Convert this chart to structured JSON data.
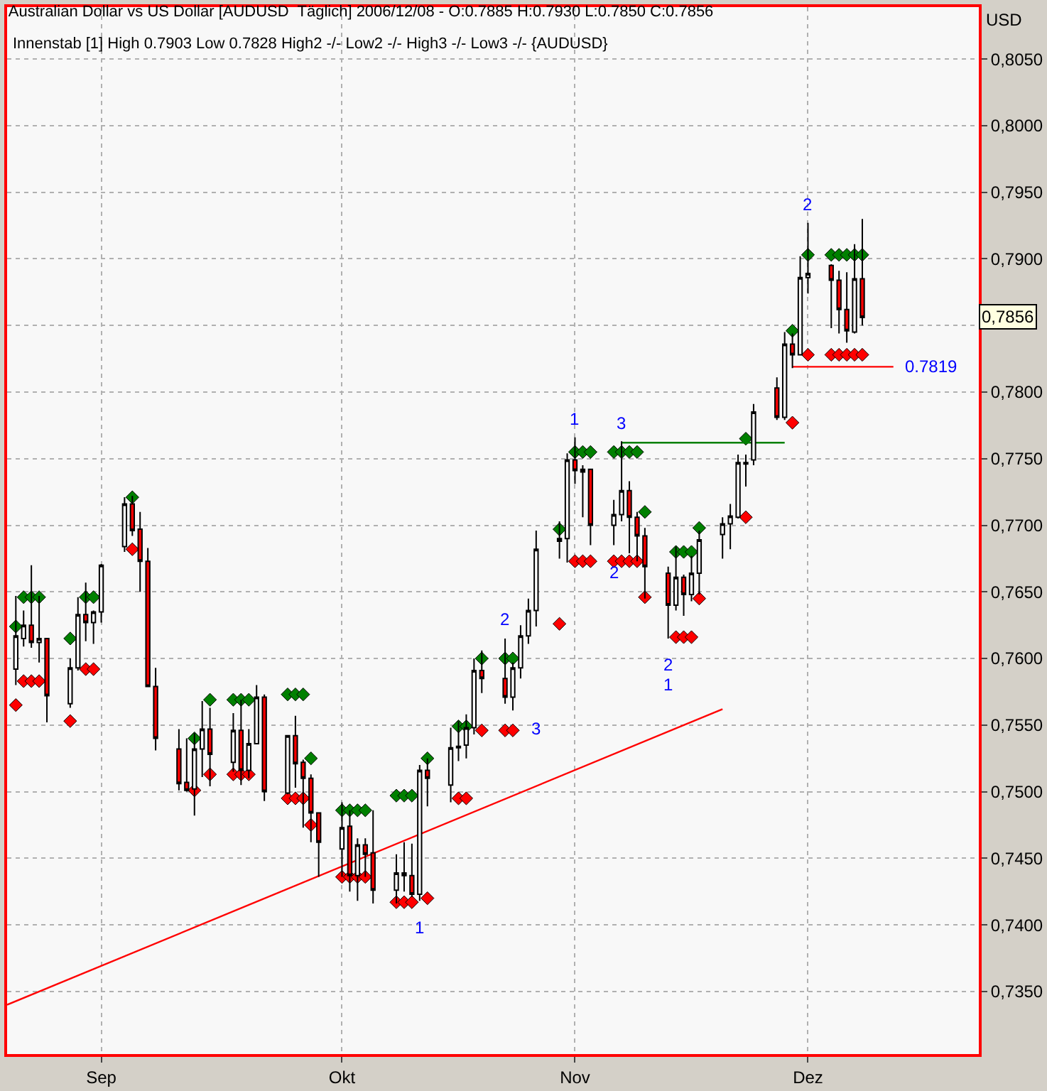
{
  "chart_data": {
    "type": "candlestick",
    "title": "Australian Dollar vs US Dollar [AUDUSD  Täglich] 2006/12/08 - O:0.7885 H:0.7930 L:0.7850 C:0.7856",
    "subtitle": "Innenstab [1] High 0.7903 Low 0.7828 High2 -/- Low2 -/- High3 -/- Low3 -/- {AUDUSD}",
    "ylabel": "USD",
    "x": [
      "2006-08-21",
      "2006-08-22",
      "2006-08-23",
      "2006-08-24",
      "2006-08-25",
      "2006-08-28",
      "2006-08-29",
      "2006-08-30",
      "2006-08-31",
      "2006-09-01",
      "2006-09-04",
      "2006-09-05",
      "2006-09-06",
      "2006-09-07",
      "2006-09-08",
      "2006-09-11",
      "2006-09-12",
      "2006-09-13",
      "2006-09-14",
      "2006-09-15",
      "2006-09-18",
      "2006-09-19",
      "2006-09-20",
      "2006-09-21",
      "2006-09-22",
      "2006-09-25",
      "2006-09-26",
      "2006-09-27",
      "2006-09-28",
      "2006-09-29",
      "2006-10-02",
      "2006-10-03",
      "2006-10-04",
      "2006-10-05",
      "2006-10-06",
      "2006-10-09",
      "2006-10-10",
      "2006-10-11",
      "2006-10-12",
      "2006-10-13",
      "2006-10-16",
      "2006-10-17",
      "2006-10-18",
      "2006-10-19",
      "2006-10-20",
      "2006-10-23",
      "2006-10-24",
      "2006-10-25",
      "2006-10-26",
      "2006-10-27",
      "2006-10-30",
      "2006-10-31",
      "2006-11-01",
      "2006-11-02",
      "2006-11-03",
      "2006-11-06",
      "2006-11-07",
      "2006-11-08",
      "2006-11-09",
      "2006-11-10",
      "2006-11-13",
      "2006-11-14",
      "2006-11-15",
      "2006-11-16",
      "2006-11-17",
      "2006-11-20",
      "2006-11-21",
      "2006-11-22",
      "2006-11-23",
      "2006-11-24",
      "2006-11-27",
      "2006-11-28",
      "2006-11-29",
      "2006-11-30",
      "2006-12-01",
      "2006-12-04",
      "2006-12-05",
      "2006-12-06",
      "2006-12-07",
      "2006-12-08"
    ],
    "ohlc": [
      [
        0.7592,
        0.7647,
        0.758,
        0.7617
      ],
      [
        0.7615,
        0.7636,
        0.7609,
        0.7625
      ],
      [
        0.7625,
        0.767,
        0.7608,
        0.7612
      ],
      [
        0.7612,
        0.7647,
        0.7597,
        0.7615
      ],
      [
        0.7615,
        0.7615,
        0.7552,
        0.7572
      ],
      [
        0.7566,
        0.76,
        0.7563,
        0.7593
      ],
      [
        0.7593,
        0.7646,
        0.7591,
        0.7633
      ],
      [
        0.7633,
        0.7657,
        0.7613,
        0.7627
      ],
      [
        0.7627,
        0.7636,
        0.7611,
        0.7635
      ],
      [
        0.7635,
        0.7671,
        0.7627,
        0.767
      ],
      [
        0.7684,
        0.7721,
        0.768,
        0.7716
      ],
      [
        0.7716,
        0.7722,
        0.7692,
        0.7696
      ],
      [
        0.7697,
        0.771,
        0.765,
        0.7673
      ],
      [
        0.7673,
        0.7683,
        0.7579,
        0.7579
      ],
      [
        0.7579,
        0.7593,
        0.7531,
        0.754
      ],
      [
        0.7532,
        0.7547,
        0.7501,
        0.7506
      ],
      [
        0.7507,
        0.754,
        0.75,
        0.7501
      ],
      [
        0.7502,
        0.7544,
        0.7482,
        0.7532
      ],
      [
        0.7532,
        0.7568,
        0.7511,
        0.7547
      ],
      [
        0.7547,
        0.7563,
        0.7504,
        0.7528
      ],
      [
        0.7522,
        0.7559,
        0.7515,
        0.7546
      ],
      [
        0.7546,
        0.7569,
        0.7505,
        0.7516
      ],
      [
        0.7516,
        0.7547,
        0.751,
        0.7536
      ],
      [
        0.7536,
        0.758,
        0.7536,
        0.7571
      ],
      [
        0.7571,
        0.7573,
        0.7493,
        0.75
      ],
      [
        0.7499,
        0.7542,
        0.7498,
        0.7542
      ],
      [
        0.7542,
        0.7557,
        0.7503,
        0.7521
      ],
      [
        0.7522,
        0.7524,
        0.7473,
        0.751
      ],
      [
        0.751,
        0.7513,
        0.7462,
        0.7484
      ],
      [
        0.7484,
        0.7484,
        0.7436,
        0.7462
      ],
      [
        0.7457,
        0.7492,
        0.7436,
        0.7473
      ],
      [
        0.7474,
        0.7486,
        0.7425,
        0.7437
      ],
      [
        0.7437,
        0.7465,
        0.7418,
        0.746
      ],
      [
        0.746,
        0.7465,
        0.7436,
        0.7453
      ],
      [
        0.7454,
        0.7486,
        0.7416,
        0.7426
      ],
      [
        0.7426,
        0.7453,
        0.7416,
        0.7439
      ],
      [
        0.7439,
        0.7462,
        0.7425,
        0.7437
      ],
      [
        0.7437,
        0.7461,
        0.7421,
        0.7423
      ],
      [
        0.7423,
        0.752,
        0.7418,
        0.7516
      ],
      [
        0.7516,
        0.7525,
        0.7489,
        0.751
      ],
      [
        0.7505,
        0.7548,
        0.7492,
        0.7533
      ],
      [
        0.7533,
        0.7553,
        0.7523,
        0.7534
      ],
      [
        0.7535,
        0.7558,
        0.7525,
        0.7548
      ],
      [
        0.7548,
        0.76,
        0.7543,
        0.7591
      ],
      [
        0.7591,
        0.7606,
        0.7574,
        0.7585
      ],
      [
        0.7585,
        0.7615,
        0.7566,
        0.7571
      ],
      [
        0.7571,
        0.7597,
        0.7561,
        0.7593
      ],
      [
        0.7593,
        0.7625,
        0.7585,
        0.7617
      ],
      [
        0.7617,
        0.7645,
        0.7611,
        0.7636
      ],
      [
        0.7636,
        0.7696,
        0.7624,
        0.7682
      ],
      [
        0.7688,
        0.7703,
        0.7675,
        0.769
      ],
      [
        0.769,
        0.7754,
        0.7672,
        0.7749
      ],
      [
        0.7749,
        0.7766,
        0.7731,
        0.7741
      ],
      [
        0.774,
        0.7745,
        0.7706,
        0.7742
      ],
      [
        0.7742,
        0.7742,
        0.7685,
        0.77
      ],
      [
        0.77,
        0.7719,
        0.7685,
        0.7708
      ],
      [
        0.7708,
        0.7763,
        0.7703,
        0.7726
      ],
      [
        0.7726,
        0.7733,
        0.7679,
        0.7706
      ],
      [
        0.7706,
        0.771,
        0.7673,
        0.7692
      ],
      [
        0.7692,
        0.7698,
        0.7645,
        0.7669
      ],
      [
        0.7664,
        0.7669,
        0.7615,
        0.764
      ],
      [
        0.764,
        0.7684,
        0.7636,
        0.7661
      ],
      [
        0.7661,
        0.7663,
        0.7632,
        0.7648
      ],
      [
        0.7648,
        0.7677,
        0.7643,
        0.7664
      ],
      [
        0.7664,
        0.7696,
        0.7648,
        0.7689
      ],
      [
        0.7693,
        0.7706,
        0.7675,
        0.7701
      ],
      [
        0.7701,
        0.7716,
        0.7682,
        0.7707
      ],
      [
        0.7706,
        0.7753,
        0.7705,
        0.7747
      ],
      [
        0.7746,
        0.7753,
        0.7729,
        0.7747
      ],
      [
        0.7749,
        0.7791,
        0.7745,
        0.7785
      ],
      [
        0.7803,
        0.7811,
        0.7779,
        0.7781
      ],
      [
        0.7781,
        0.7845,
        0.7779,
        0.7836
      ],
      [
        0.7836,
        0.7844,
        0.7818,
        0.7828
      ],
      [
        0.7828,
        0.7902,
        0.7828,
        0.7886
      ],
      [
        0.7886,
        0.7927,
        0.7874,
        0.7889
      ],
      [
        0.7895,
        0.7896,
        0.7848,
        0.7884
      ],
      [
        0.7884,
        0.7891,
        0.7844,
        0.7862
      ],
      [
        0.7862,
        0.789,
        0.7837,
        0.7846
      ],
      [
        0.7845,
        0.7911,
        0.7844,
        0.7885
      ],
      [
        0.7885,
        0.793,
        0.785,
        0.7856
      ]
    ],
    "series": [
      {
        "type": "scatter",
        "color": "#008000",
        "marker": "diamond",
        "values": [
          0.7624,
          0.7646,
          0.7646,
          0.7646,
          null,
          0.7615,
          null,
          0.7646,
          0.7646,
          null,
          null,
          0.7721,
          null,
          null,
          null,
          null,
          null,
          0.754,
          null,
          0.7569,
          0.7569,
          0.7569,
          0.7569,
          null,
          null,
          0.7573,
          0.7573,
          0.7573,
          0.7525,
          null,
          0.7486,
          0.7486,
          0.7486,
          0.7486,
          null,
          0.7497,
          0.7497,
          0.7497,
          null,
          0.7525,
          null,
          0.7549,
          0.7549,
          null,
          0.76,
          0.76,
          0.76,
          null,
          null,
          null,
          0.7697,
          null,
          0.7755,
          0.7755,
          0.7755,
          0.7755,
          0.7755,
          0.7755,
          0.7755,
          0.771,
          null,
          0.768,
          0.768,
          0.768,
          0.7698,
          null,
          null,
          null,
          0.7765,
          null,
          null,
          null,
          0.7846,
          null,
          0.7903,
          0.7903,
          0.7903,
          0.7903,
          0.7903,
          0.7903
        ]
      },
      {
        "type": "scatter",
        "color": "#ff0000",
        "marker": "diamond",
        "values": [
          0.7565,
          0.7583,
          0.7583,
          0.7583,
          null,
          0.7553,
          null,
          0.7592,
          0.7592,
          null,
          null,
          0.7682,
          null,
          null,
          null,
          null,
          null,
          0.7501,
          null,
          0.7513,
          0.7513,
          0.7513,
          0.7513,
          null,
          null,
          0.7495,
          0.7495,
          0.7495,
          0.7475,
          null,
          0.7436,
          0.7436,
          0.7436,
          0.7436,
          null,
          0.7417,
          0.7417,
          0.7417,
          null,
          0.742,
          null,
          0.7495,
          0.7495,
          null,
          0.7546,
          0.7546,
          0.7546,
          null,
          null,
          null,
          0.7626,
          null,
          0.7673,
          0.7673,
          0.7673,
          0.7673,
          0.7673,
          0.7673,
          0.7673,
          0.7646,
          null,
          0.7616,
          0.7616,
          0.7616,
          0.7645,
          null,
          null,
          null,
          0.7706,
          null,
          null,
          null,
          0.7777,
          null,
          0.7828,
          0.7828,
          0.7828,
          0.7828,
          0.7828,
          0.7828
        ]
      },
      {
        "type": "line",
        "color": "#ff0000",
        "x": [
          "2006-08-19T21:00",
          "2006-11-20"
        ],
        "values": [
          0.734,
          0.7562
        ]
      },
      {
        "type": "line",
        "color": "#008000",
        "x": [
          "2006-11-07",
          "2006-11-28"
        ],
        "values": [
          0.7762,
          0.7762
        ]
      },
      {
        "type": "line",
        "color": "#ff0000",
        "x": [
          "2006-11-29",
          "2006-12-12"
        ],
        "values": [
          0.7819,
          0.7819
        ]
      }
    ],
    "annotations": [
      {
        "text": "1",
        "x": "2006-10-12",
        "y": 0.7418
      },
      {
        "text": "2",
        "x": "2006-10-23",
        "y": 0.7615
      },
      {
        "text": "3",
        "x": "2006-10-25",
        "y": 0.7547
      },
      {
        "text": "1",
        "x": "2006-11-01",
        "y": 0.7766
      },
      {
        "text": "3",
        "x": "2006-11-07",
        "y": 0.7763
      },
      {
        "text": "2",
        "x": "2006-11-06",
        "y": 0.7685
      },
      {
        "text": "2",
        "x": "2006-11-13",
        "y": 0.7615
      },
      {
        "text": "1",
        "x": "2006-11-13",
        "y": 0.7615
      },
      {
        "text": "2",
        "x": "2006-12-01",
        "y": 0.7927
      },
      {
        "text": "0.7819",
        "x": "2006-12-12",
        "y": 0.7819
      },
      "0,7856"
    ],
    "xlim": [
      "2006-08-19T21:00",
      "2006-12-23"
    ],
    "xticks": [
      {
        "value": "2006-09-01",
        "label": "Sep"
      },
      {
        "value": "2006-10-02",
        "label": "Okt"
      },
      {
        "value": "2006-11-01",
        "label": "Nov"
      },
      {
        "value": "2006-12-01",
        "label": "Dez"
      }
    ],
    "ylim": [
      0.7303,
      0.8089
    ],
    "yticks": [
      {
        "value": 0.735,
        "label": "0,7350"
      },
      {
        "value": 0.74,
        "label": "0,7400"
      },
      {
        "value": 0.745,
        "label": "0,7450"
      },
      {
        "value": 0.75,
        "label": "0,7500"
      },
      {
        "value": 0.755,
        "label": "0,7550"
      },
      {
        "value": 0.76,
        "label": "0,7600"
      },
      {
        "value": 0.765,
        "label": "0,7650"
      },
      {
        "value": 0.77,
        "label": "0,7700"
      },
      {
        "value": 0.775,
        "label": "0,7750"
      },
      {
        "value": 0.78,
        "label": "0,7800"
      },
      {
        "value": 0.785,
        "label": null
      },
      {
        "value": 0.79,
        "label": "0,7900"
      },
      {
        "value": 0.795,
        "label": "0,7950"
      },
      {
        "value": 0.8,
        "label": "0,8000"
      },
      {
        "value": 0.805,
        "label": "0,8050"
      }
    ],
    "grid": true
  }
}
